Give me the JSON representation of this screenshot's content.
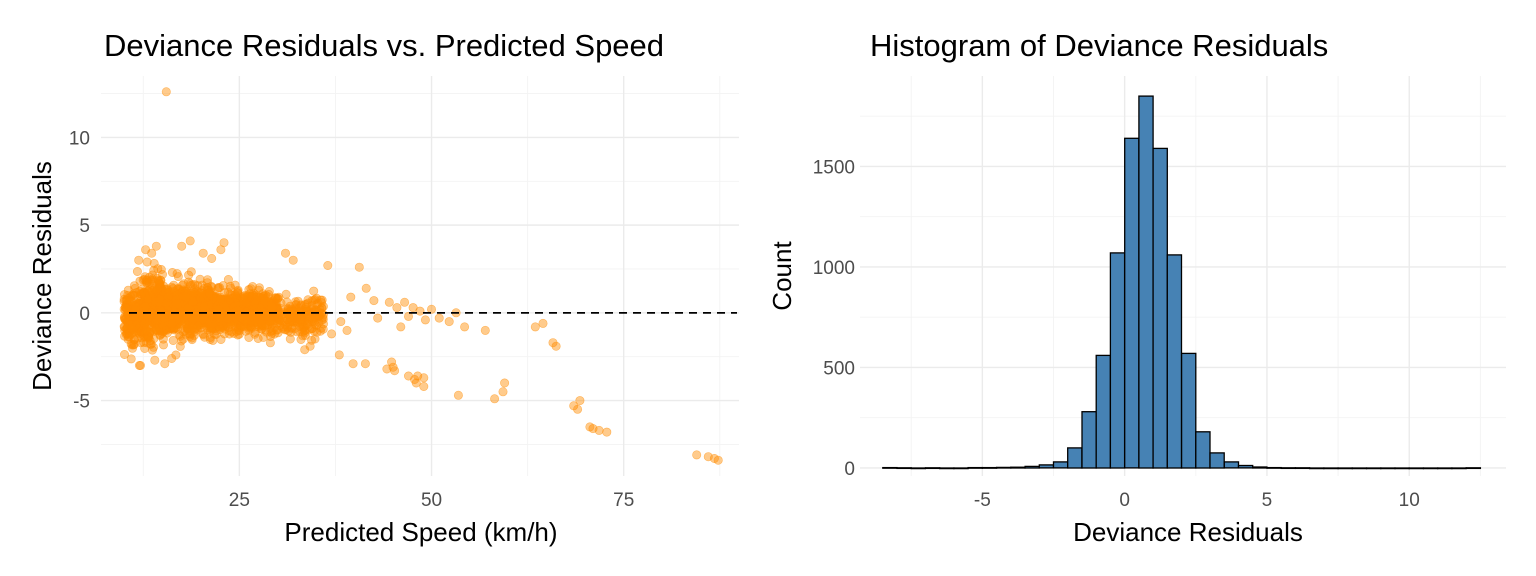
{
  "colors": {
    "scatter_points": "#ff8c00",
    "histogram_fill": "#4682b4",
    "histogram_outline": "#000000",
    "reference_line": "#000000",
    "grid": "#ebebeb"
  },
  "chart_data": [
    {
      "type": "scatter",
      "title": "Deviance Residuals vs. Predicted Speed",
      "xlabel": "Predicted Speed (km/h)",
      "ylabel": "Deviance Residuals",
      "xlim": [
        7,
        90
      ],
      "ylim": [
        -9.3,
        13.5
      ],
      "xticks": [
        25,
        50,
        75
      ],
      "yticks": [
        -5,
        0,
        5,
        10
      ],
      "grid": true,
      "reference_line": {
        "y": 0,
        "style": "dashed"
      },
      "point_alpha": 0.45,
      "dense_cloud": [
        {
          "x_range": [
            10,
            13
          ],
          "y_center": -0.1,
          "y_spread": 1.1,
          "n": 260
        },
        {
          "x_range": [
            12.5,
            15
          ],
          "y_center": 0.3,
          "y_spread": 1.2,
          "n": 220
        },
        {
          "x_range": [
            14,
            22
          ],
          "y_center": 0.2,
          "y_spread": 0.9,
          "n": 900
        },
        {
          "x_range": [
            22,
            30
          ],
          "y_center": 0.1,
          "y_spread": 0.75,
          "n": 600
        },
        {
          "x_range": [
            30,
            36
          ],
          "y_center": -0.2,
          "y_spread": 0.8,
          "n": 180
        }
      ],
      "points": [
        {
          "x": 15.5,
          "y": 12.6
        },
        {
          "x": 12.8,
          "y": 3.6
        },
        {
          "x": 13.6,
          "y": 3.4
        },
        {
          "x": 14.2,
          "y": 3.8
        },
        {
          "x": 11.9,
          "y": 3.0
        },
        {
          "x": 13.0,
          "y": 2.9
        },
        {
          "x": 17.5,
          "y": 3.8
        },
        {
          "x": 18.6,
          "y": 4.1
        },
        {
          "x": 20.3,
          "y": 3.4
        },
        {
          "x": 21.4,
          "y": 3.1
        },
        {
          "x": 23.0,
          "y": 4.0
        },
        {
          "x": 22.6,
          "y": 3.6
        },
        {
          "x": 31.0,
          "y": 3.4
        },
        {
          "x": 32.0,
          "y": 3.0
        },
        {
          "x": 36.5,
          "y": 2.7
        },
        {
          "x": 15.3,
          "y": -2.9
        },
        {
          "x": 14.0,
          "y": -2.7
        },
        {
          "x": 16.2,
          "y": -2.6
        },
        {
          "x": 33.5,
          "y": -2.1
        },
        {
          "x": 34.2,
          "y": -1.9
        },
        {
          "x": 40.6,
          "y": 2.6
        },
        {
          "x": 41.5,
          "y": 1.4
        },
        {
          "x": 39.5,
          "y": 0.9
        },
        {
          "x": 42.5,
          "y": 0.7
        },
        {
          "x": 44.5,
          "y": 0.6
        },
        {
          "x": 45.5,
          "y": 0.3
        },
        {
          "x": 46.5,
          "y": 0.6
        },
        {
          "x": 47.6,
          "y": 0.3
        },
        {
          "x": 48.5,
          "y": 0.1
        },
        {
          "x": 50.0,
          "y": 0.2
        },
        {
          "x": 51.0,
          "y": -0.3
        },
        {
          "x": 52.3,
          "y": -0.5
        },
        {
          "x": 53.2,
          "y": 0.0
        },
        {
          "x": 38.2,
          "y": -0.5
        },
        {
          "x": 39.0,
          "y": -1.0
        },
        {
          "x": 43.0,
          "y": -0.3
        },
        {
          "x": 46.0,
          "y": -0.8
        },
        {
          "x": 47.0,
          "y": -0.2
        },
        {
          "x": 49.2,
          "y": -0.4
        },
        {
          "x": 54.3,
          "y": -0.8
        },
        {
          "x": 57.0,
          "y": -1.0
        },
        {
          "x": 63.5,
          "y": -0.8
        },
        {
          "x": 64.5,
          "y": -0.6
        },
        {
          "x": 65.8,
          "y": -1.7
        },
        {
          "x": 66.2,
          "y": -1.9
        },
        {
          "x": 37.0,
          "y": -1.2
        },
        {
          "x": 38.0,
          "y": -2.4
        },
        {
          "x": 39.8,
          "y": -2.9
        },
        {
          "x": 41.4,
          "y": -2.9
        },
        {
          "x": 44.8,
          "y": -2.8
        },
        {
          "x": 45.0,
          "y": -3.1
        },
        {
          "x": 45.2,
          "y": -3.3
        },
        {
          "x": 44.2,
          "y": -3.2
        },
        {
          "x": 47.0,
          "y": -3.6
        },
        {
          "x": 47.8,
          "y": -3.8
        },
        {
          "x": 48.2,
          "y": -3.6
        },
        {
          "x": 48.0,
          "y": -4.0
        },
        {
          "x": 49.0,
          "y": -3.7
        },
        {
          "x": 49.0,
          "y": -4.2
        },
        {
          "x": 53.5,
          "y": -4.7
        },
        {
          "x": 58.2,
          "y": -4.9
        },
        {
          "x": 59.3,
          "y": -4.5
        },
        {
          "x": 59.5,
          "y": -4.0
        },
        {
          "x": 68.5,
          "y": -5.3
        },
        {
          "x": 69.0,
          "y": -5.5
        },
        {
          "x": 69.3,
          "y": -5.0
        },
        {
          "x": 70.6,
          "y": -6.5
        },
        {
          "x": 71.0,
          "y": -6.6
        },
        {
          "x": 71.8,
          "y": -6.7
        },
        {
          "x": 72.8,
          "y": -6.8
        },
        {
          "x": 84.5,
          "y": -8.1
        },
        {
          "x": 86.0,
          "y": -8.2
        },
        {
          "x": 86.8,
          "y": -8.3
        },
        {
          "x": 87.3,
          "y": -8.4
        }
      ]
    },
    {
      "type": "bar",
      "title": "Histogram of Deviance Residuals",
      "xlabel": "Deviance Residuals",
      "ylabel": "Count",
      "xlim": [
        -9.3,
        13.4
      ],
      "ylim": [
        -40,
        1950
      ],
      "xticks": [
        -5,
        0,
        5,
        10
      ],
      "yticks": [
        0,
        500,
        1000,
        1500
      ],
      "grid": true,
      "bin_width": 0.5,
      "bins": [
        {
          "x": -8.25,
          "count": 2
        },
        {
          "x": -7.75,
          "count": 1
        },
        {
          "x": -7.25,
          "count": 0
        },
        {
          "x": -6.75,
          "count": 1
        },
        {
          "x": -6.25,
          "count": 0
        },
        {
          "x": -5.75,
          "count": 0
        },
        {
          "x": -5.25,
          "count": 2
        },
        {
          "x": -4.75,
          "count": 2
        },
        {
          "x": -4.25,
          "count": 3
        },
        {
          "x": -3.75,
          "count": 4
        },
        {
          "x": -3.25,
          "count": 8
        },
        {
          "x": -2.75,
          "count": 15
        },
        {
          "x": -2.25,
          "count": 30
        },
        {
          "x": -1.75,
          "count": 100
        },
        {
          "x": -1.25,
          "count": 280
        },
        {
          "x": -0.75,
          "count": 560
        },
        {
          "x": -0.25,
          "count": 1070
        },
        {
          "x": 0.25,
          "count": 1640
        },
        {
          "x": 0.75,
          "count": 1850
        },
        {
          "x": 1.25,
          "count": 1590
        },
        {
          "x": 1.75,
          "count": 1060
        },
        {
          "x": 2.25,
          "count": 570
        },
        {
          "x": 2.75,
          "count": 180
        },
        {
          "x": 3.25,
          "count": 75
        },
        {
          "x": 3.75,
          "count": 30
        },
        {
          "x": 4.25,
          "count": 12
        },
        {
          "x": 4.75,
          "count": 5
        },
        {
          "x": 5.25,
          "count": 2
        },
        {
          "x": 5.75,
          "count": 1
        },
        {
          "x": 6.25,
          "count": 1
        },
        {
          "x": 6.75,
          "count": 0
        },
        {
          "x": 7.25,
          "count": 0
        },
        {
          "x": 7.75,
          "count": 0
        },
        {
          "x": 8.25,
          "count": 0
        },
        {
          "x": 8.75,
          "count": 0
        },
        {
          "x": 9.25,
          "count": 0
        },
        {
          "x": 9.75,
          "count": 0
        },
        {
          "x": 10.25,
          "count": 0
        },
        {
          "x": 10.75,
          "count": 0
        },
        {
          "x": 11.25,
          "count": 0
        },
        {
          "x": 11.75,
          "count": 0
        },
        {
          "x": 12.25,
          "count": 1
        }
      ]
    }
  ]
}
